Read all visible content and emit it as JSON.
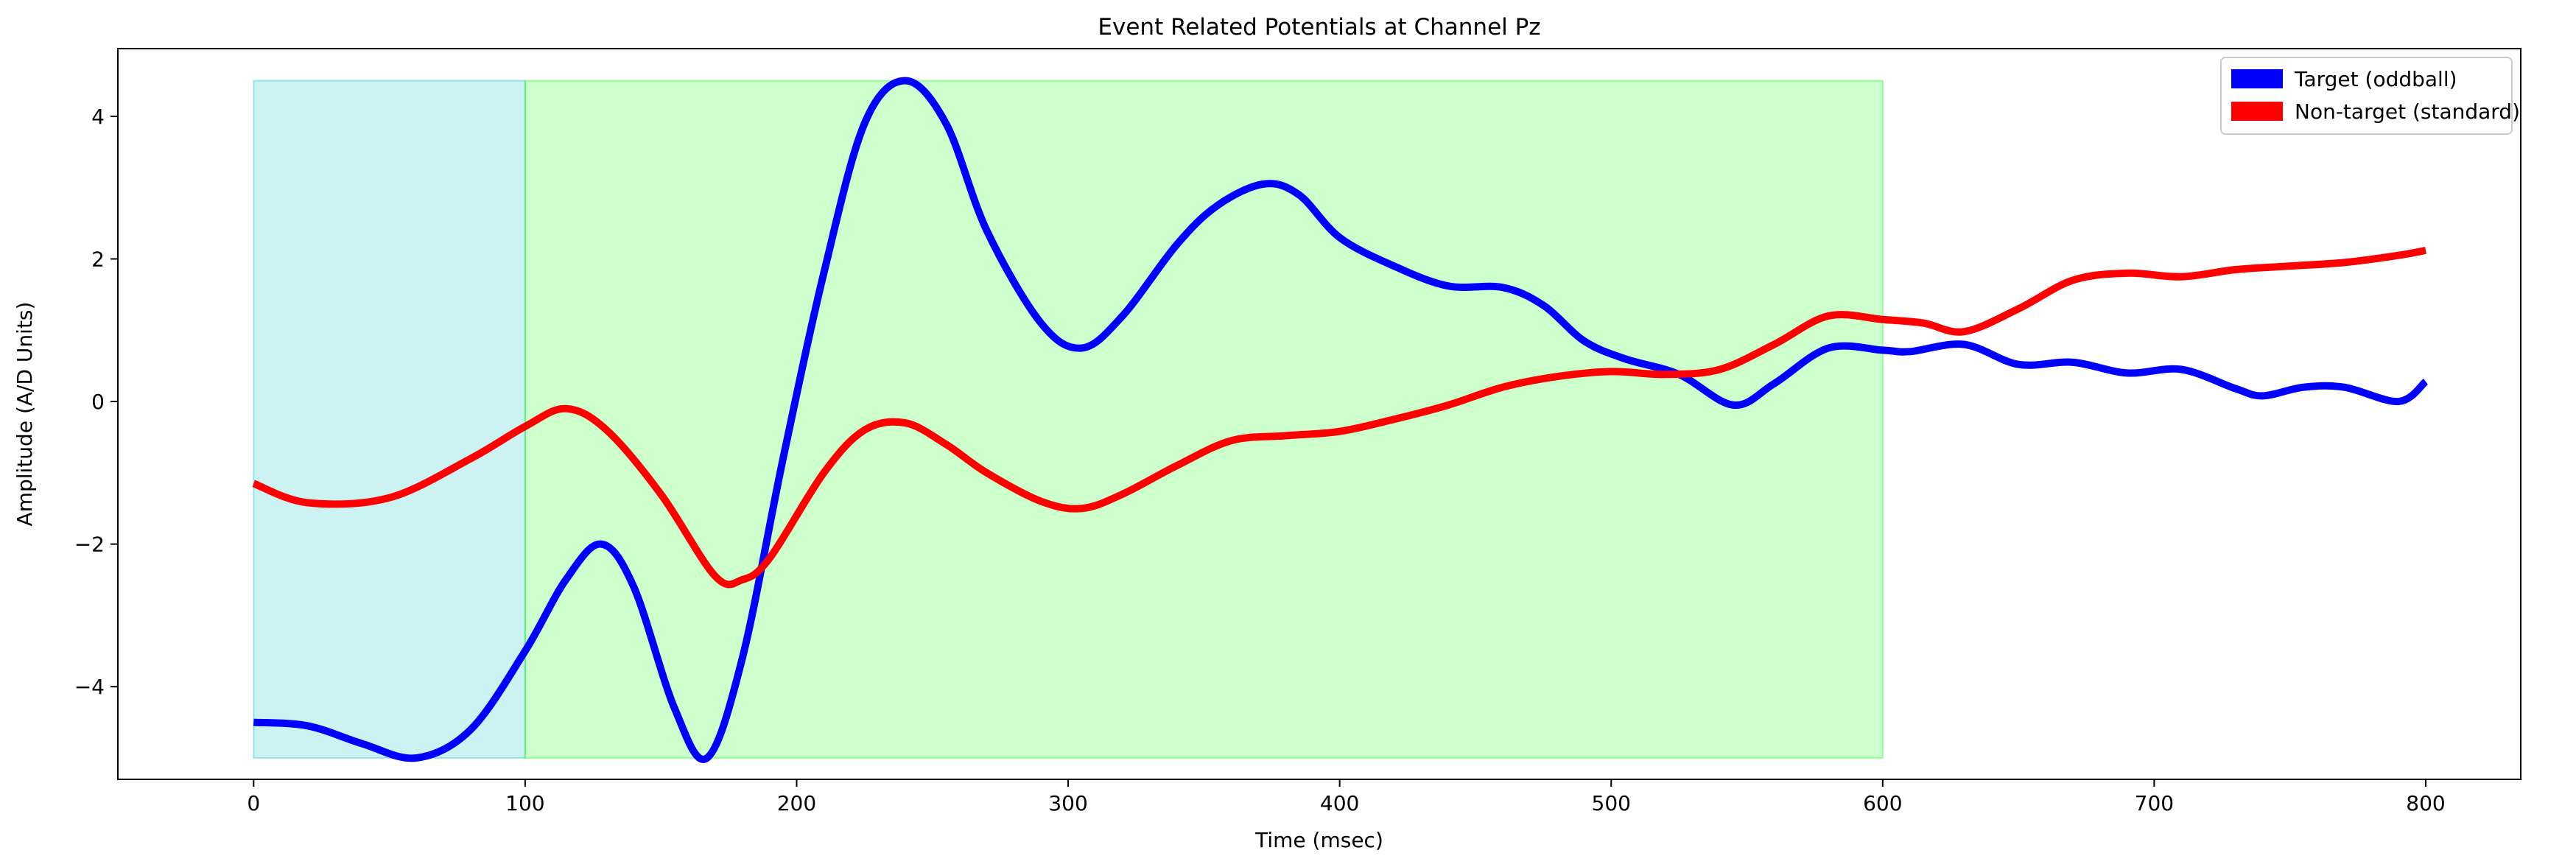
{
  "chart_data": {
    "type": "line",
    "title": "Event Related Potentials at Channel Pz",
    "xlabel": "Time (msec)",
    "ylabel": "Amplitude (A/D Units)",
    "xlim": [
      -50,
      835
    ],
    "ylim": [
      -5.3,
      4.95
    ],
    "xticks": [
      0,
      100,
      200,
      300,
      400,
      500,
      600,
      700,
      800
    ],
    "xtick_labels": [
      "0",
      "100",
      "200",
      "300",
      "400",
      "500",
      "600",
      "700",
      "800"
    ],
    "yticks": [
      -4,
      -2,
      0,
      2,
      4
    ],
    "ytick_labels": [
      "−4",
      "−2",
      "0",
      "2",
      "4"
    ],
    "grid": false,
    "legend_position": "upper right",
    "shaded_regions": [
      {
        "x_start": 0,
        "x_end": 100,
        "y_start": -5,
        "y_end": 4.5,
        "color": "#00bfbf",
        "opacity": 0.2
      },
      {
        "x_start": 100,
        "x_end": 600,
        "y_start": -5,
        "y_end": 4.5,
        "color": "#00ff00",
        "opacity": 0.2
      }
    ],
    "series": [
      {
        "name": "Target (oddball)",
        "color": "#0000ff",
        "x": [
          0,
          20,
          40,
          60,
          80,
          100,
          115,
          128,
          140,
          155,
          167,
          180,
          195,
          210,
          225,
          240,
          255,
          270,
          290,
          305,
          320,
          340,
          355,
          372,
          385,
          400,
          420,
          440,
          460,
          475,
          490,
          505,
          525,
          545,
          560,
          580,
          600,
          610,
          630,
          650,
          670,
          690,
          710,
          730,
          740,
          755,
          770,
          790,
          800
        ],
        "y": [
          -4.5,
          -4.55,
          -4.8,
          -5.0,
          -4.6,
          -3.5,
          -2.5,
          -2.0,
          -2.6,
          -4.3,
          -5.0,
          -3.6,
          -0.8,
          1.8,
          3.9,
          4.5,
          3.9,
          2.4,
          1.1,
          0.75,
          1.2,
          2.2,
          2.75,
          3.05,
          2.9,
          2.3,
          1.9,
          1.62,
          1.6,
          1.35,
          0.85,
          0.6,
          0.38,
          -0.05,
          0.25,
          0.75,
          0.72,
          0.7,
          0.8,
          0.52,
          0.55,
          0.4,
          0.45,
          0.18,
          0.08,
          0.2,
          0.2,
          0.0,
          0.28
        ]
      },
      {
        "name": "Non-target (standard)",
        "color": "#ff0000",
        "x": [
          0,
          20,
          50,
          80,
          100,
          115,
          130,
          150,
          170,
          180,
          190,
          210,
          225,
          240,
          255,
          270,
          290,
          305,
          320,
          340,
          360,
          380,
          400,
          420,
          440,
          460,
          480,
          500,
          520,
          540,
          560,
          580,
          600,
          615,
          630,
          650,
          670,
          690,
          710,
          730,
          750,
          770,
          790,
          800
        ],
        "y": [
          -1.15,
          -1.42,
          -1.35,
          -0.8,
          -0.35,
          -0.1,
          -0.4,
          -1.3,
          -2.45,
          -2.5,
          -2.2,
          -1.0,
          -0.4,
          -0.3,
          -0.6,
          -1.0,
          -1.4,
          -1.5,
          -1.3,
          -0.9,
          -0.55,
          -0.48,
          -0.42,
          -0.25,
          -0.05,
          0.2,
          0.35,
          0.42,
          0.38,
          0.45,
          0.8,
          1.2,
          1.15,
          1.1,
          0.98,
          1.3,
          1.7,
          1.8,
          1.75,
          1.85,
          1.9,
          1.95,
          2.05,
          2.12
        ]
      }
    ]
  }
}
